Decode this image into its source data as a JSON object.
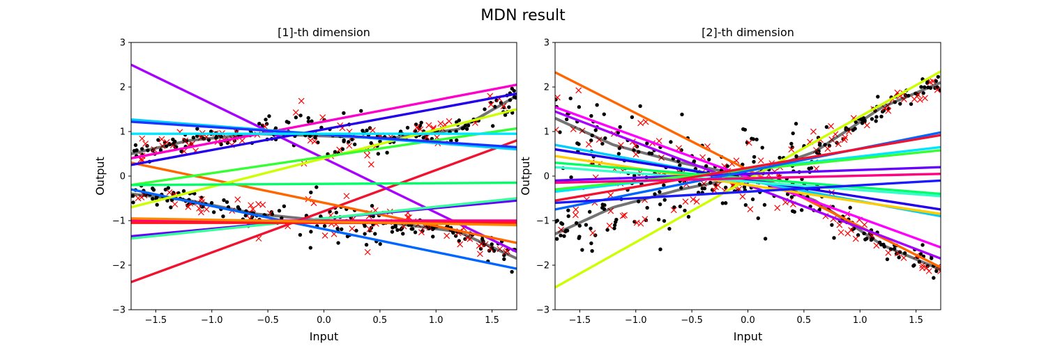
{
  "figure": {
    "title": "MDN result"
  },
  "chart_data": [
    {
      "type": "scatter",
      "title": "[1]-th dimension",
      "xlabel": "Input",
      "ylabel": "Output",
      "xlim": [
        -1.72,
        1.72
      ],
      "ylim": [
        -3,
        3
      ],
      "xticks": [
        -1.5,
        -1.0,
        -0.5,
        0.0,
        0.5,
        1.0,
        1.5
      ],
      "xtick_labels": [
        "−1.5",
        "−1.0",
        "−0.5",
        "0.0",
        "0.5",
        "1.0",
        "1.5"
      ],
      "yticks": [
        -3,
        -2,
        -1,
        0,
        1,
        2,
        3
      ],
      "ytick_labels": [
        "−3",
        "−2",
        "−1",
        "0",
        "1",
        "2",
        "3"
      ],
      "grid": false,
      "legend": "none",
      "lines": [
        {
          "color": "#f0122e",
          "x": [
            -1.72,
            1.72
          ],
          "y": [
            -2.38,
            0.8
          ]
        },
        {
          "color": "#a800ff",
          "x": [
            -1.72,
            1.72
          ],
          "y": [
            2.5,
            -1.7
          ]
        },
        {
          "color": "#ff6600",
          "x": [
            -1.72,
            1.72
          ],
          "y": [
            0.3,
            -1.5
          ]
        },
        {
          "color": "#0066ff",
          "x": [
            -1.72,
            1.72
          ],
          "y": [
            -0.3,
            -2.08
          ]
        },
        {
          "color": "#2200ee",
          "x": [
            -1.72,
            1.72
          ],
          "y": [
            0.25,
            1.85
          ]
        },
        {
          "color": "#ff00cc",
          "x": [
            -1.72,
            1.72
          ],
          "y": [
            0.4,
            2.05
          ]
        },
        {
          "color": "#ccff00",
          "x": [
            -1.72,
            1.72
          ],
          "y": [
            -0.7,
            1.5
          ]
        },
        {
          "color": "#33ff33",
          "x": [
            -1.72,
            1.72
          ],
          "y": [
            -0.2,
            1.07
          ]
        },
        {
          "color": "#00ccff",
          "x": [
            -1.72,
            1.72
          ],
          "y": [
            1.27,
            0.6
          ]
        },
        {
          "color": "#1a33ff",
          "x": [
            -1.72,
            1.72
          ],
          "y": [
            1.22,
            0.65
          ]
        },
        {
          "color": "#00e5ff",
          "x": [
            -1.72,
            1.72
          ],
          "y": [
            0.95,
            0.95
          ]
        },
        {
          "color": "#00ff66",
          "x": [
            -1.72,
            1.72
          ],
          "y": [
            -0.2,
            -0.15
          ]
        },
        {
          "color": "#6600ff",
          "x": [
            -1.72,
            1.72
          ],
          "y": [
            -1.35,
            -0.55
          ]
        },
        {
          "color": "#33ff99",
          "x": [
            -1.72,
            1.72
          ],
          "y": [
            -1.4,
            -0.5
          ]
        },
        {
          "color": "#ff0080",
          "x": [
            -1.72,
            1.72
          ],
          "y": [
            -1.0,
            -1.0
          ]
        },
        {
          "color": "#ff1a1a",
          "x": [
            -1.72,
            1.72
          ],
          "y": [
            -1.05,
            -1.05
          ]
        },
        {
          "color": "#ff8800",
          "x": [
            -1.72,
            1.72
          ],
          "y": [
            -0.95,
            -1.1
          ]
        }
      ],
      "truth_curves": [
        {
          "x": [
            -1.72,
            -1.2,
            -0.6,
            0.0,
            0.6,
            1.2,
            1.72
          ],
          "y": [
            0.5,
            0.8,
            0.95,
            0.9,
            0.85,
            1.05,
            1.8
          ]
        },
        {
          "x": [
            -1.72,
            -1.2,
            -0.6,
            0.0,
            0.6,
            1.2,
            1.72
          ],
          "y": [
            -0.4,
            -0.55,
            -0.85,
            -1.0,
            -1.05,
            -1.25,
            -1.85
          ]
        }
      ]
    },
    {
      "type": "scatter",
      "title": "[2]-th dimension",
      "xlabel": "Input",
      "ylabel": "Output",
      "xlim": [
        -1.72,
        1.72
      ],
      "ylim": [
        -3,
        3
      ],
      "xticks": [
        -1.5,
        -1.0,
        -0.5,
        0.0,
        0.5,
        1.0,
        1.5
      ],
      "xtick_labels": [
        "−1.5",
        "−1.0",
        "−0.5",
        "0.0",
        "0.5",
        "1.0",
        "1.5"
      ],
      "yticks": [
        -3,
        -2,
        -1,
        0,
        1,
        2,
        3
      ],
      "ytick_labels": [
        "−3",
        "−2",
        "−1",
        "0",
        "1",
        "2",
        "3"
      ],
      "grid": false,
      "legend": "none",
      "lines": [
        {
          "color": "#ff6600",
          "x": [
            -1.72,
            1.72
          ],
          "y": [
            2.33,
            -2.05
          ]
        },
        {
          "color": "#ff00ff",
          "x": [
            -1.72,
            1.72
          ],
          "y": [
            1.55,
            -1.6
          ]
        },
        {
          "color": "#a800ff",
          "x": [
            -1.72,
            1.72
          ],
          "y": [
            1.45,
            -1.85
          ]
        },
        {
          "color": "#ccff00",
          "x": [
            -1.72,
            1.72
          ],
          "y": [
            -2.5,
            2.35
          ]
        },
        {
          "color": "#00ccff",
          "x": [
            -1.72,
            1.72
          ],
          "y": [
            0.7,
            -0.9
          ]
        },
        {
          "color": "#2200ee",
          "x": [
            -1.72,
            1.72
          ],
          "y": [
            0.6,
            -0.75
          ]
        },
        {
          "color": "#ffcc00",
          "x": [
            -1.72,
            1.72
          ],
          "y": [
            0.45,
            -0.85
          ]
        },
        {
          "color": "#00ff66",
          "x": [
            -1.72,
            1.72
          ],
          "y": [
            0.3,
            -0.4
          ]
        },
        {
          "color": "#33ffcc",
          "x": [
            -1.72,
            1.72
          ],
          "y": [
            0.2,
            -0.45
          ]
        },
        {
          "color": "#6600ff",
          "x": [
            -1.72,
            1.72
          ],
          "y": [
            -0.1,
            0.2
          ]
        },
        {
          "color": "#00e5ff",
          "x": [
            -1.72,
            1.72
          ],
          "y": [
            -0.35,
            0.65
          ]
        },
        {
          "color": "#33ff33",
          "x": [
            -1.72,
            1.72
          ],
          "y": [
            -0.3,
            0.58
          ]
        },
        {
          "color": "#0066ff",
          "x": [
            -1.72,
            1.72
          ],
          "y": [
            -0.75,
            0.98
          ]
        },
        {
          "color": "#f0122e",
          "x": [
            -1.72,
            1.72
          ],
          "y": [
            -0.55,
            0.92
          ]
        },
        {
          "color": "#ff0080",
          "x": [
            -1.72,
            1.72
          ],
          "y": [
            -0.15,
            0.05
          ]
        },
        {
          "color": "#1a1aff",
          "x": [
            -1.72,
            1.72
          ],
          "y": [
            -0.6,
            -0.1
          ]
        }
      ],
      "truth_curves": [
        {
          "x": [
            -1.72,
            -1.2,
            -0.6,
            0.0,
            0.6,
            1.2,
            1.72
          ],
          "y": [
            -1.3,
            -0.7,
            -0.3,
            0.0,
            0.55,
            1.55,
            2.1
          ]
        },
        {
          "x": [
            -1.72,
            -1.2,
            -0.6,
            0.0,
            0.6,
            1.2,
            1.72
          ],
          "y": [
            1.3,
            0.7,
            0.3,
            0.0,
            -0.55,
            -1.55,
            -2.1
          ]
        }
      ]
    }
  ]
}
